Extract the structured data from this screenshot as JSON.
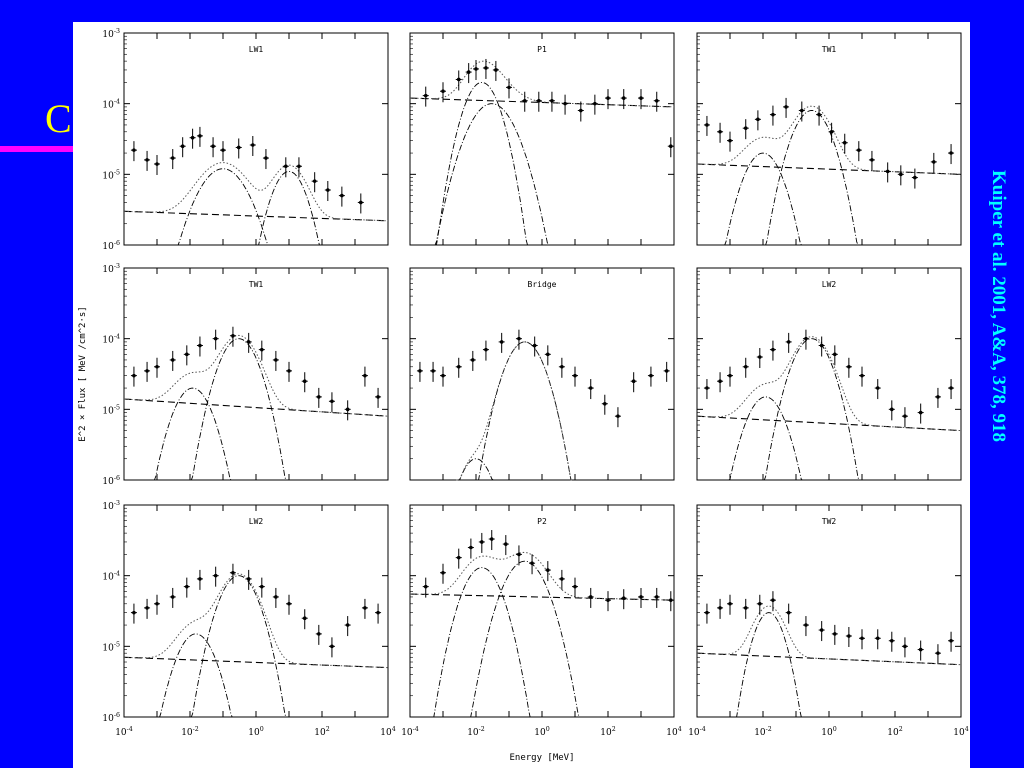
{
  "slide": {
    "title_fragment": "C",
    "citation": "Kuiper et al. 2001, A&A, 378, 918"
  },
  "colors": {
    "background": "#0000ff",
    "title": "#ffff00",
    "rule": "#ff00ff",
    "citation": "#00ffff",
    "figure_bg": "#ffffff",
    "ink": "#000000"
  },
  "chart_data": {
    "type": "scatter",
    "xscale": "log",
    "yscale": "log",
    "xlim": [
      0.0001,
      10000
    ],
    "ylim": [
      1e-06,
      0.001
    ],
    "x_tick_labels": [
      "10^-4",
      "10^-2",
      "10^0",
      "10^2",
      "10^4"
    ],
    "y_tick_labels": [
      "10^-6",
      "10^-5",
      "10^-4",
      "10^-3"
    ],
    "xlabel": "Energy [MeV]",
    "ylabel": "E^2 × Flux [ MeV /cm^2·s]",
    "series_styles": [
      "data points with error bars",
      "dotted: total model",
      "dash-dot: model components",
      "dashed: power law"
    ],
    "panels": [
      {
        "title": "LW1",
        "data_points": [
          {
            "x": 0.0002,
            "y": 2.2e-05
          },
          {
            "x": 0.0005,
            "y": 1.6e-05
          },
          {
            "x": 0.001,
            "y": 1.4e-05
          },
          {
            "x": 0.003,
            "y": 1.7e-05
          },
          {
            "x": 0.006,
            "y": 2.5e-05
          },
          {
            "x": 0.012,
            "y": 3.3e-05
          },
          {
            "x": 0.02,
            "y": 3.5e-05
          },
          {
            "x": 0.05,
            "y": 2.5e-05
          },
          {
            "x": 0.1,
            "y": 2.2e-05
          },
          {
            "x": 0.3,
            "y": 2.4e-05
          },
          {
            "x": 0.8,
            "y": 2.6e-05
          },
          {
            "x": 2,
            "y": 1.7e-05
          },
          {
            "x": 8,
            "y": 1.3e-05
          },
          {
            "x": 20,
            "y": 1.3e-05
          },
          {
            "x": 60,
            "y": 8e-06
          },
          {
            "x": 150,
            "y": 6e-06
          },
          {
            "x": 400,
            "y": 5e-06
          },
          {
            "x": 1500,
            "y": 4e-06
          }
        ],
        "power_law": {
          "y_at_xmin": 3e-06,
          "y_at_xmax": 2.2e-06
        },
        "peaks": [
          {
            "peak_x": 0.1,
            "peak_y": 1.2e-05,
            "width_decades": 1.3
          },
          {
            "peak_x": 10,
            "peak_y": 1.1e-05,
            "width_decades": 0.9
          }
        ]
      },
      {
        "title": "P1",
        "data_points": [
          {
            "x": 0.0003,
            "y": 0.00013
          },
          {
            "x": 0.001,
            "y": 0.00015
          },
          {
            "x": 0.003,
            "y": 0.00022
          },
          {
            "x": 0.006,
            "y": 0.00028
          },
          {
            "x": 0.01,
            "y": 0.00031
          },
          {
            "x": 0.02,
            "y": 0.00032
          },
          {
            "x": 0.04,
            "y": 0.0003
          },
          {
            "x": 0.1,
            "y": 0.00017
          },
          {
            "x": 0.3,
            "y": 0.00011
          },
          {
            "x": 0.8,
            "y": 0.00011
          },
          {
            "x": 2,
            "y": 0.00011
          },
          {
            "x": 5,
            "y": 0.0001
          },
          {
            "x": 15,
            "y": 8e-05
          },
          {
            "x": 40,
            "y": 0.0001
          },
          {
            "x": 100,
            "y": 0.00012
          },
          {
            "x": 300,
            "y": 0.00012
          },
          {
            "x": 1000,
            "y": 0.00012
          },
          {
            "x": 3000,
            "y": 0.00011
          },
          {
            "x": 8000,
            "y": 2.5e-05
          }
        ],
        "power_law": {
          "y_at_xmin": 0.00012,
          "y_at_xmax": 9e-05
        },
        "peaks": [
          {
            "peak_x": 0.015,
            "peak_y": 0.0002,
            "width_decades": 0.9
          },
          {
            "peak_x": 0.03,
            "peak_y": 0.0001,
            "width_decades": 1.2
          }
        ]
      },
      {
        "title": "TW1",
        "data_points": [
          {
            "x": 0.0002,
            "y": 5e-05
          },
          {
            "x": 0.0005,
            "y": 4e-05
          },
          {
            "x": 0.001,
            "y": 3e-05
          },
          {
            "x": 0.003,
            "y": 4.5e-05
          },
          {
            "x": 0.007,
            "y": 6e-05
          },
          {
            "x": 0.02,
            "y": 7e-05
          },
          {
            "x": 0.05,
            "y": 9e-05
          },
          {
            "x": 0.15,
            "y": 8e-05
          },
          {
            "x": 0.5,
            "y": 7e-05
          },
          {
            "x": 1.2,
            "y": 4e-05
          },
          {
            "x": 3,
            "y": 2.8e-05
          },
          {
            "x": 8,
            "y": 2.2e-05
          },
          {
            "x": 20,
            "y": 1.6e-05
          },
          {
            "x": 60,
            "y": 1.1e-05
          },
          {
            "x": 150,
            "y": 1e-05
          },
          {
            "x": 400,
            "y": 9e-06
          },
          {
            "x": 1500,
            "y": 1.5e-05
          },
          {
            "x": 5000,
            "y": 2e-05
          }
        ],
        "power_law": {
          "y_at_xmin": 1.4e-05,
          "y_at_xmax": 1e-05
        },
        "peaks": [
          {
            "peak_x": 0.01,
            "peak_y": 2e-05,
            "width_decades": 1.0
          },
          {
            "peak_x": 0.3,
            "peak_y": 8e-05,
            "width_decades": 1.0
          }
        ]
      },
      {
        "title": "TW1",
        "data_points": [
          {
            "x": 0.0002,
            "y": 3e-05
          },
          {
            "x": 0.0005,
            "y": 3.5e-05
          },
          {
            "x": 0.001,
            "y": 4e-05
          },
          {
            "x": 0.003,
            "y": 5e-05
          },
          {
            "x": 0.008,
            "y": 6e-05
          },
          {
            "x": 0.02,
            "y": 8e-05
          },
          {
            "x": 0.06,
            "y": 0.0001
          },
          {
            "x": 0.2,
            "y": 0.00011
          },
          {
            "x": 0.6,
            "y": 9e-05
          },
          {
            "x": 1.5,
            "y": 7e-05
          },
          {
            "x": 4,
            "y": 5e-05
          },
          {
            "x": 10,
            "y": 3.5e-05
          },
          {
            "x": 30,
            "y": 2.5e-05
          },
          {
            "x": 80,
            "y": 1.5e-05
          },
          {
            "x": 200,
            "y": 1.3e-05
          },
          {
            "x": 600,
            "y": 1e-05
          },
          {
            "x": 2000,
            "y": 3e-05
          },
          {
            "x": 5000,
            "y": 1.5e-05
          }
        ],
        "power_law": {
          "y_at_xmin": 1.4e-05,
          "y_at_xmax": 8e-06
        },
        "peaks": [
          {
            "peak_x": 0.012,
            "peak_y": 2e-05,
            "width_decades": 1.0
          },
          {
            "peak_x": 0.3,
            "peak_y": 0.0001,
            "width_decades": 1.0
          }
        ]
      },
      {
        "title": "Bridge",
        "data_points": [
          {
            "x": 0.0002,
            "y": 3.5e-05
          },
          {
            "x": 0.0005,
            "y": 3.5e-05
          },
          {
            "x": 0.001,
            "y": 3e-05
          },
          {
            "x": 0.003,
            "y": 4e-05
          },
          {
            "x": 0.008,
            "y": 5e-05
          },
          {
            "x": 0.02,
            "y": 7e-05
          },
          {
            "x": 0.06,
            "y": 9e-05
          },
          {
            "x": 0.2,
            "y": 0.0001
          },
          {
            "x": 0.6,
            "y": 8e-05
          },
          {
            "x": 1.5,
            "y": 6e-05
          },
          {
            "x": 4,
            "y": 4e-05
          },
          {
            "x": 10,
            "y": 3e-05
          },
          {
            "x": 30,
            "y": 2e-05
          },
          {
            "x": 80,
            "y": 1.2e-05
          },
          {
            "x": 200,
            "y": 8e-06
          },
          {
            "x": 600,
            "y": 2.5e-05
          },
          {
            "x": 2000,
            "y": 3e-05
          },
          {
            "x": 6000,
            "y": 3.5e-05
          }
        ],
        "power_law": null,
        "peaks": [
          {
            "peak_x": 0.01,
            "peak_y": 2e-06,
            "width_decades": 0.9
          },
          {
            "peak_x": 0.3,
            "peak_y": 9e-05,
            "width_decades": 1.0
          }
        ]
      },
      {
        "title": "LW2",
        "data_points": [
          {
            "x": 0.0002,
            "y": 2e-05
          },
          {
            "x": 0.0005,
            "y": 2.5e-05
          },
          {
            "x": 0.001,
            "y": 3e-05
          },
          {
            "x": 0.003,
            "y": 4e-05
          },
          {
            "x": 0.008,
            "y": 5.5e-05
          },
          {
            "x": 0.02,
            "y": 7e-05
          },
          {
            "x": 0.06,
            "y": 9e-05
          },
          {
            "x": 0.2,
            "y": 0.0001
          },
          {
            "x": 0.6,
            "y": 8e-05
          },
          {
            "x": 1.5,
            "y": 6e-05
          },
          {
            "x": 4,
            "y": 4e-05
          },
          {
            "x": 10,
            "y": 3e-05
          },
          {
            "x": 30,
            "y": 2e-05
          },
          {
            "x": 80,
            "y": 1e-05
          },
          {
            "x": 200,
            "y": 8e-06
          },
          {
            "x": 600,
            "y": 9e-06
          },
          {
            "x": 2000,
            "y": 1.5e-05
          },
          {
            "x": 5000,
            "y": 2e-05
          }
        ],
        "power_law": {
          "y_at_xmin": 8e-06,
          "y_at_xmax": 5e-06
        },
        "peaks": [
          {
            "peak_x": 0.012,
            "peak_y": 1.5e-05,
            "width_decades": 1.0
          },
          {
            "peak_x": 0.3,
            "peak_y": 0.0001,
            "width_decades": 1.0
          }
        ]
      },
      {
        "title": "LW2",
        "data_points": [
          {
            "x": 0.0002,
            "y": 3e-05
          },
          {
            "x": 0.0005,
            "y": 3.5e-05
          },
          {
            "x": 0.001,
            "y": 4e-05
          },
          {
            "x": 0.003,
            "y": 5e-05
          },
          {
            "x": 0.008,
            "y": 7e-05
          },
          {
            "x": 0.02,
            "y": 9e-05
          },
          {
            "x": 0.06,
            "y": 0.0001
          },
          {
            "x": 0.2,
            "y": 0.00011
          },
          {
            "x": 0.6,
            "y": 9e-05
          },
          {
            "x": 1.5,
            "y": 7e-05
          },
          {
            "x": 4,
            "y": 5e-05
          },
          {
            "x": 10,
            "y": 4e-05
          },
          {
            "x": 30,
            "y": 2.5e-05
          },
          {
            "x": 80,
            "y": 1.5e-05
          },
          {
            "x": 200,
            "y": 1e-05
          },
          {
            "x": 600,
            "y": 2e-05
          },
          {
            "x": 2000,
            "y": 3.5e-05
          },
          {
            "x": 5000,
            "y": 3e-05
          }
        ],
        "power_law": {
          "y_at_xmin": 7e-06,
          "y_at_xmax": 5e-06
        },
        "peaks": [
          {
            "peak_x": 0.015,
            "peak_y": 1.5e-05,
            "width_decades": 1.0
          },
          {
            "peak_x": 0.3,
            "peak_y": 0.0001,
            "width_decades": 1.0
          }
        ]
      },
      {
        "title": "P2",
        "data_points": [
          {
            "x": 0.0003,
            "y": 7e-05
          },
          {
            "x": 0.001,
            "y": 0.00011
          },
          {
            "x": 0.003,
            "y": 0.00018
          },
          {
            "x": 0.007,
            "y": 0.00025
          },
          {
            "x": 0.015,
            "y": 0.0003
          },
          {
            "x": 0.03,
            "y": 0.00033
          },
          {
            "x": 0.08,
            "y": 0.00028
          },
          {
            "x": 0.2,
            "y": 0.0002
          },
          {
            "x": 0.5,
            "y": 0.00015
          },
          {
            "x": 1.5,
            "y": 0.00012
          },
          {
            "x": 4,
            "y": 9e-05
          },
          {
            "x": 10,
            "y": 7e-05
          },
          {
            "x": 30,
            "y": 5e-05
          },
          {
            "x": 100,
            "y": 4.5e-05
          },
          {
            "x": 300,
            "y": 4.8e-05
          },
          {
            "x": 1000,
            "y": 5e-05
          },
          {
            "x": 3000,
            "y": 5e-05
          },
          {
            "x": 8000,
            "y": 4.5e-05
          }
        ],
        "power_law": {
          "y_at_xmin": 5.5e-05,
          "y_at_xmax": 4.5e-05
        },
        "peaks": [
          {
            "peak_x": 0.015,
            "peak_y": 0.00013,
            "width_decades": 1.0
          },
          {
            "peak_x": 0.3,
            "peak_y": 0.00016,
            "width_decades": 1.1
          }
        ]
      },
      {
        "title": "TW2",
        "data_points": [
          {
            "x": 0.0002,
            "y": 3e-05
          },
          {
            "x": 0.0005,
            "y": 3.5e-05
          },
          {
            "x": 0.001,
            "y": 4e-05
          },
          {
            "x": 0.003,
            "y": 3.5e-05
          },
          {
            "x": 0.008,
            "y": 4e-05
          },
          {
            "x": 0.02,
            "y": 4.5e-05
          },
          {
            "x": 0.06,
            "y": 3e-05
          },
          {
            "x": 0.2,
            "y": 2e-05
          },
          {
            "x": 0.6,
            "y": 1.7e-05
          },
          {
            "x": 1.5,
            "y": 1.5e-05
          },
          {
            "x": 4,
            "y": 1.4e-05
          },
          {
            "x": 10,
            "y": 1.3e-05
          },
          {
            "x": 30,
            "y": 1.3e-05
          },
          {
            "x": 80,
            "y": 1.2e-05
          },
          {
            "x": 200,
            "y": 1e-05
          },
          {
            "x": 600,
            "y": 9e-06
          },
          {
            "x": 2000,
            "y": 8e-06
          },
          {
            "x": 5000,
            "y": 1.2e-05
          }
        ],
        "power_law": {
          "y_at_xmin": 8e-06,
          "y_at_xmax": 5.5e-06
        },
        "peaks": [
          {
            "peak_x": 0.015,
            "peak_y": 3e-05,
            "width_decades": 0.8
          }
        ]
      }
    ]
  }
}
